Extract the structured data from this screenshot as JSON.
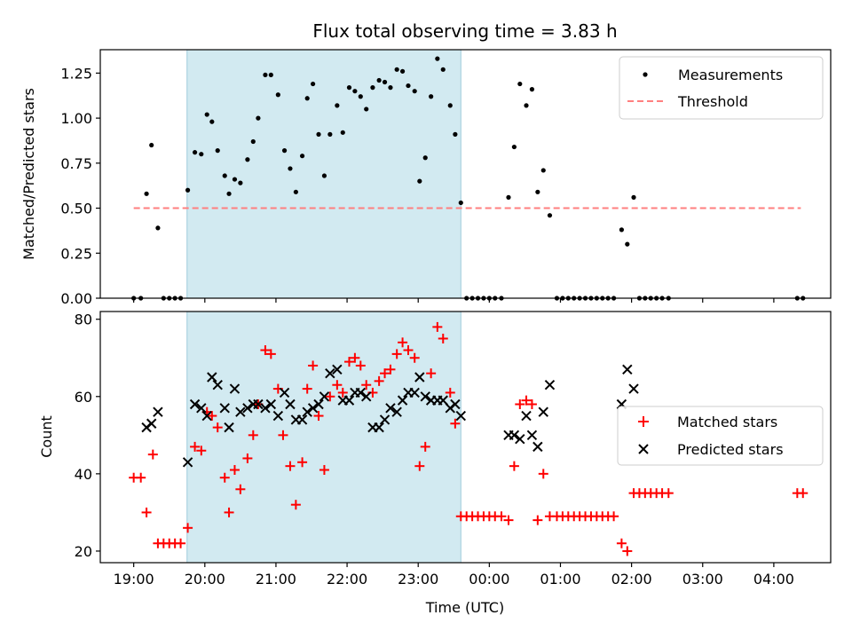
{
  "title": "Flux total observing time = 3.83 h",
  "colors": {
    "shade": "#add8e6",
    "threshold": "#ff7f7f",
    "measure": "#000000",
    "matched": "#ff0000",
    "predicted": "#000000"
  },
  "chart_data": [
    {
      "type": "scatter",
      "ylabel": "Matched/Predicted stars",
      "ylim": [
        0,
        1.38
      ],
      "xlim": [
        -0.47,
        9.8
      ],
      "yticks": [
        "0.00",
        "0.25",
        "0.50",
        "0.75",
        "1.00",
        "1.25"
      ],
      "ytick_values": [
        0,
        0.25,
        0.5,
        0.75,
        1.0,
        1.25
      ],
      "shaded_region": {
        "x": [
          0.75,
          4.6
        ]
      },
      "threshold": {
        "name": "Threshold",
        "y": 0.5,
        "x": [
          0.0,
          9.38
        ]
      },
      "legend": {
        "position": "top-right",
        "entries": [
          "Measurements",
          "Threshold"
        ]
      },
      "series": [
        {
          "name": "Measurements",
          "points": [
            [
              0.0,
              0
            ],
            [
              0.1,
              0
            ],
            [
              0.18,
              0.58
            ],
            [
              0.25,
              0.85
            ],
            [
              0.34,
              0.39
            ],
            [
              0.42,
              0
            ],
            [
              0.5,
              0
            ],
            [
              0.58,
              0
            ],
            [
              0.66,
              0
            ],
            [
              0.76,
              0.6
            ],
            [
              0.86,
              0.81
            ],
            [
              0.95,
              0.8
            ],
            [
              1.03,
              1.02
            ],
            [
              1.1,
              0.98
            ],
            [
              1.18,
              0.82
            ],
            [
              1.28,
              0.68
            ],
            [
              1.34,
              0.58
            ],
            [
              1.42,
              0.66
            ],
            [
              1.5,
              0.64
            ],
            [
              1.6,
              0.77
            ],
            [
              1.68,
              0.87
            ],
            [
              1.75,
              1.0
            ],
            [
              1.85,
              1.24
            ],
            [
              1.93,
              1.24
            ],
            [
              2.03,
              1.13
            ],
            [
              2.12,
              0.82
            ],
            [
              2.2,
              0.72
            ],
            [
              2.28,
              0.59
            ],
            [
              2.37,
              0.79
            ],
            [
              2.44,
              1.11
            ],
            [
              2.52,
              1.19
            ],
            [
              2.6,
              0.91
            ],
            [
              2.68,
              0.68
            ],
            [
              2.76,
              0.91
            ],
            [
              2.86,
              1.07
            ],
            [
              2.94,
              0.92
            ],
            [
              3.03,
              1.17
            ],
            [
              3.11,
              1.15
            ],
            [
              3.19,
              1.12
            ],
            [
              3.27,
              1.05
            ],
            [
              3.36,
              1.17
            ],
            [
              3.45,
              1.21
            ],
            [
              3.53,
              1.2
            ],
            [
              3.61,
              1.17
            ],
            [
              3.7,
              1.27
            ],
            [
              3.78,
              1.26
            ],
            [
              3.86,
              1.18
            ],
            [
              3.95,
              1.15
            ],
            [
              4.02,
              0.65
            ],
            [
              4.1,
              0.78
            ],
            [
              4.18,
              1.12
            ],
            [
              4.27,
              1.33
            ],
            [
              4.35,
              1.27
            ],
            [
              4.45,
              1.07
            ],
            [
              4.52,
              0.91
            ],
            [
              4.6,
              0.53
            ],
            [
              4.68,
              0
            ],
            [
              4.76,
              0
            ],
            [
              4.84,
              0
            ],
            [
              4.92,
              0
            ],
            [
              5.0,
              0
            ],
            [
              5.08,
              0
            ],
            [
              5.17,
              0
            ],
            [
              5.27,
              0.56
            ],
            [
              5.35,
              0.84
            ],
            [
              5.43,
              1.19
            ],
            [
              5.52,
              1.07
            ],
            [
              5.6,
              1.16
            ],
            [
              5.68,
              0.59
            ],
            [
              5.76,
              0.71
            ],
            [
              5.85,
              0.46
            ],
            [
              5.95,
              0
            ],
            [
              6.03,
              0
            ],
            [
              6.11,
              0
            ],
            [
              6.19,
              0
            ],
            [
              6.27,
              0
            ],
            [
              6.35,
              0
            ],
            [
              6.43,
              0
            ],
            [
              6.51,
              0
            ],
            [
              6.59,
              0
            ],
            [
              6.67,
              0
            ],
            [
              6.75,
              0
            ],
            [
              6.86,
              0.38
            ],
            [
              6.94,
              0.3
            ],
            [
              7.03,
              0.56
            ],
            [
              7.11,
              0
            ],
            [
              7.19,
              0
            ],
            [
              7.27,
              0
            ],
            [
              7.35,
              0
            ],
            [
              7.43,
              0
            ],
            [
              7.52,
              0
            ],
            [
              9.33,
              0
            ],
            [
              9.41,
              0
            ]
          ]
        }
      ]
    },
    {
      "type": "scatter",
      "ylabel": "Count",
      "xlabel": "Time (UTC)",
      "ylim": [
        17,
        82
      ],
      "xlim": [
        -0.47,
        9.8
      ],
      "yticks": [
        "20",
        "40",
        "60",
        "80"
      ],
      "ytick_values": [
        20,
        40,
        60,
        80
      ],
      "xticks": [
        "19:00",
        "20:00",
        "21:00",
        "22:00",
        "23:00",
        "00:00",
        "01:00",
        "02:00",
        "03:00",
        "04:00"
      ],
      "xtick_values": [
        0,
        1,
        2,
        3,
        4,
        5,
        6,
        7,
        8,
        9
      ],
      "shaded_region": {
        "x": [
          0.75,
          4.6
        ]
      },
      "legend": {
        "position": "center-right",
        "entries": [
          "Matched stars",
          "Predicted stars"
        ]
      },
      "series": [
        {
          "name": "Matched stars",
          "marker": "+",
          "points": [
            [
              0.0,
              39
            ],
            [
              0.1,
              39
            ],
            [
              0.18,
              30
            ],
            [
              0.27,
              45
            ],
            [
              0.34,
              22
            ],
            [
              0.42,
              22
            ],
            [
              0.5,
              22
            ],
            [
              0.58,
              22
            ],
            [
              0.66,
              22
            ],
            [
              0.76,
              26
            ],
            [
              0.86,
              47
            ],
            [
              0.95,
              46
            ],
            [
              1.03,
              56
            ],
            [
              1.1,
              55
            ],
            [
              1.18,
              52
            ],
            [
              1.28,
              39
            ],
            [
              1.34,
              30
            ],
            [
              1.42,
              41
            ],
            [
              1.5,
              36
            ],
            [
              1.6,
              44
            ],
            [
              1.68,
              50
            ],
            [
              1.75,
              58
            ],
            [
              1.85,
              72
            ],
            [
              1.93,
              71
            ],
            [
              2.03,
              62
            ],
            [
              2.1,
              50
            ],
            [
              2.2,
              42
            ],
            [
              2.28,
              32
            ],
            [
              2.37,
              43
            ],
            [
              2.44,
              62
            ],
            [
              2.52,
              68
            ],
            [
              2.6,
              55
            ],
            [
              2.68,
              41
            ],
            [
              2.76,
              60
            ],
            [
              2.86,
              63
            ],
            [
              2.94,
              61
            ],
            [
              3.03,
              69
            ],
            [
              3.11,
              70
            ],
            [
              3.19,
              68
            ],
            [
              3.27,
              63
            ],
            [
              3.36,
              61
            ],
            [
              3.45,
              64
            ],
            [
              3.53,
              66
            ],
            [
              3.61,
              67
            ],
            [
              3.7,
              71
            ],
            [
              3.78,
              74
            ],
            [
              3.86,
              72
            ],
            [
              3.95,
              70
            ],
            [
              4.02,
              42
            ],
            [
              4.1,
              47
            ],
            [
              4.18,
              66
            ],
            [
              4.27,
              78
            ],
            [
              4.35,
              75
            ],
            [
              4.45,
              61
            ],
            [
              4.52,
              53
            ],
            [
              4.6,
              29
            ],
            [
              4.68,
              29
            ],
            [
              4.76,
              29
            ],
            [
              4.84,
              29
            ],
            [
              4.92,
              29
            ],
            [
              5.0,
              29
            ],
            [
              5.08,
              29
            ],
            [
              5.17,
              29
            ],
            [
              5.27,
              28
            ],
            [
              5.35,
              42
            ],
            [
              5.43,
              58
            ],
            [
              5.52,
              59
            ],
            [
              5.6,
              58
            ],
            [
              5.68,
              28
            ],
            [
              5.76,
              40
            ],
            [
              5.85,
              29
            ],
            [
              5.95,
              29
            ],
            [
              6.03,
              29
            ],
            [
              6.11,
              29
            ],
            [
              6.19,
              29
            ],
            [
              6.27,
              29
            ],
            [
              6.35,
              29
            ],
            [
              6.43,
              29
            ],
            [
              6.51,
              29
            ],
            [
              6.59,
              29
            ],
            [
              6.67,
              29
            ],
            [
              6.75,
              29
            ],
            [
              6.86,
              22
            ],
            [
              6.94,
              20
            ],
            [
              7.03,
              35
            ],
            [
              7.11,
              35
            ],
            [
              7.19,
              35
            ],
            [
              7.27,
              35
            ],
            [
              7.35,
              35
            ],
            [
              7.43,
              35
            ],
            [
              7.52,
              35
            ],
            [
              9.33,
              35
            ],
            [
              9.41,
              35
            ]
          ]
        },
        {
          "name": "Predicted stars",
          "marker": "x",
          "points": [
            [
              0.18,
              52
            ],
            [
              0.25,
              53
            ],
            [
              0.34,
              56
            ],
            [
              0.76,
              43
            ],
            [
              0.86,
              58
            ],
            [
              0.95,
              57
            ],
            [
              1.03,
              55
            ],
            [
              1.1,
              65
            ],
            [
              1.18,
              63
            ],
            [
              1.28,
              57
            ],
            [
              1.34,
              52
            ],
            [
              1.42,
              62
            ],
            [
              1.5,
              56
            ],
            [
              1.6,
              57
            ],
            [
              1.68,
              58
            ],
            [
              1.75,
              58
            ],
            [
              1.85,
              57
            ],
            [
              1.93,
              58
            ],
            [
              2.03,
              55
            ],
            [
              2.12,
              61
            ],
            [
              2.2,
              58
            ],
            [
              2.28,
              54
            ],
            [
              2.37,
              54
            ],
            [
              2.44,
              56
            ],
            [
              2.52,
              57
            ],
            [
              2.6,
              58
            ],
            [
              2.68,
              60
            ],
            [
              2.76,
              66
            ],
            [
              2.86,
              67
            ],
            [
              2.94,
              59
            ],
            [
              3.03,
              59
            ],
            [
              3.11,
              61
            ],
            [
              3.19,
              61
            ],
            [
              3.27,
              60
            ],
            [
              3.36,
              52
            ],
            [
              3.45,
              52
            ],
            [
              3.53,
              54
            ],
            [
              3.61,
              57
            ],
            [
              3.7,
              56
            ],
            [
              3.78,
              59
            ],
            [
              3.86,
              61
            ],
            [
              3.95,
              61
            ],
            [
              4.02,
              65
            ],
            [
              4.1,
              60
            ],
            [
              4.18,
              59
            ],
            [
              4.27,
              59
            ],
            [
              4.35,
              59
            ],
            [
              4.45,
              57
            ],
            [
              4.52,
              58
            ],
            [
              4.6,
              55
            ],
            [
              5.27,
              50
            ],
            [
              5.35,
              50
            ],
            [
              5.43,
              49
            ],
            [
              5.52,
              55
            ],
            [
              5.6,
              50
            ],
            [
              5.68,
              47
            ],
            [
              5.76,
              56
            ],
            [
              5.85,
              63
            ],
            [
              6.86,
              58
            ],
            [
              6.94,
              67
            ],
            [
              7.03,
              62
            ]
          ]
        }
      ]
    }
  ]
}
